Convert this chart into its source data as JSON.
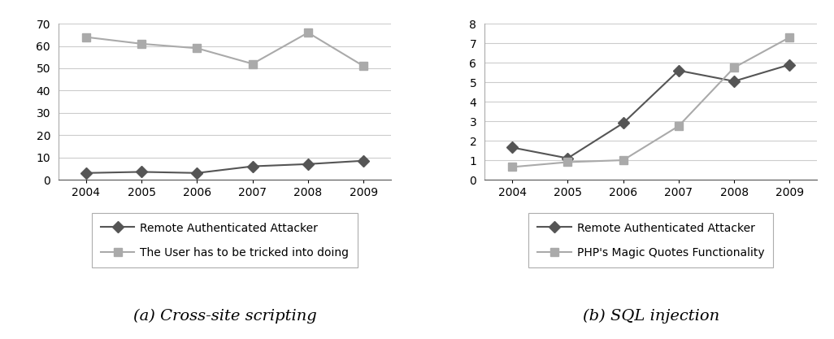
{
  "years": [
    2004,
    2005,
    2006,
    2007,
    2008,
    2009
  ],
  "chart_a": {
    "subtitle": "(a) Cross-site scripting",
    "ylim": [
      0,
      70
    ],
    "yticks": [
      0,
      10,
      20,
      30,
      40,
      50,
      60,
      70
    ],
    "series1_label": "Remote Authenticated Attacker",
    "series1_values": [
      3,
      3.5,
      3,
      6,
      7,
      8.5
    ],
    "series1_color": "#555555",
    "series1_marker": "D",
    "series2_label": "The User has to be tricked into doing",
    "series2_values": [
      64,
      61,
      59,
      52,
      66,
      51
    ],
    "series2_color": "#aaaaaa",
    "series2_marker": "s"
  },
  "chart_b": {
    "subtitle": "(b) SQL injection",
    "ylim": [
      0,
      8
    ],
    "yticks": [
      0,
      1,
      2,
      3,
      4,
      5,
      6,
      7,
      8
    ],
    "series1_label": "Remote Authenticated Attacker",
    "series1_values": [
      1.65,
      1.1,
      2.9,
      5.6,
      5.05,
      5.9
    ],
    "series1_color": "#555555",
    "series1_marker": "D",
    "series2_label": "PHP's Magic Quotes Functionality",
    "series2_values": [
      0.65,
      0.9,
      1.0,
      2.75,
      5.75,
      7.3
    ],
    "series2_color": "#aaaaaa",
    "series2_marker": "s"
  },
  "background_color": "#ffffff",
  "grid_color": "#cccccc",
  "tick_fontsize": 10,
  "legend_fontsize": 10,
  "subtitle_fontsize": 14
}
